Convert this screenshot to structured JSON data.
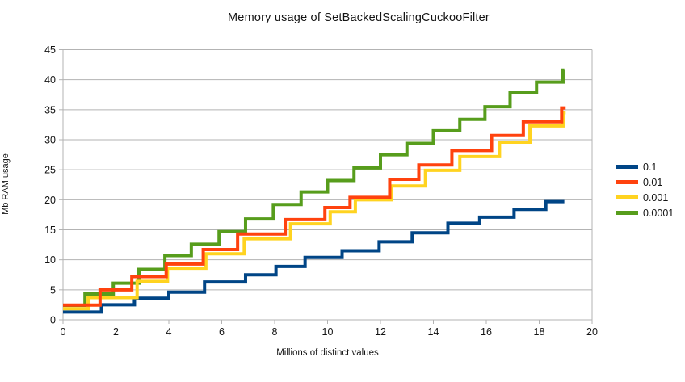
{
  "chart_data": {
    "type": "line",
    "line_style": "step-after",
    "title": "Memory usage of SetBackedScalingCuckooFilter",
    "xlabel": "Millions of distinct values",
    "ylabel": "Mb RAM usage",
    "xlim": [
      0,
      20
    ],
    "ylim": [
      0,
      45
    ],
    "x_ticks": [
      0,
      2,
      4,
      6,
      8,
      10,
      12,
      14,
      16,
      18,
      20
    ],
    "y_ticks": [
      0,
      5,
      10,
      15,
      20,
      25,
      30,
      35,
      40,
      45
    ],
    "grid": "horizontal",
    "grid_color": "#b3b3b3",
    "axis_color": "#b3b3b3",
    "background": "#ffffff",
    "legend_position": "right",
    "legend_entries": [
      "0.1",
      "0.01",
      "0.001",
      "0.0001"
    ],
    "series": [
      {
        "name": "0.1",
        "color": "#004586",
        "start_y": 1.3,
        "end_x": 18.95,
        "steps": [
          [
            1.45,
            2.5
          ],
          [
            2.7,
            3.6
          ],
          [
            4.0,
            4.6
          ],
          [
            5.35,
            6.3
          ],
          [
            6.9,
            7.5
          ],
          [
            8.05,
            8.9
          ],
          [
            9.15,
            10.4
          ],
          [
            10.55,
            11.5
          ],
          [
            11.95,
            13.0
          ],
          [
            13.2,
            14.5
          ],
          [
            14.55,
            16.1
          ],
          [
            15.75,
            17.1
          ],
          [
            17.05,
            18.4
          ],
          [
            18.25,
            19.7
          ]
        ]
      },
      {
        "name": "0.01",
        "color": "#ff420e",
        "start_y": 2.45,
        "end_x": 19.0,
        "steps": [
          [
            1.4,
            5.0
          ],
          [
            2.6,
            7.2
          ],
          [
            3.9,
            9.3
          ],
          [
            5.3,
            11.7
          ],
          [
            6.6,
            14.3
          ],
          [
            8.4,
            16.7
          ],
          [
            9.9,
            18.7
          ],
          [
            10.85,
            20.4
          ],
          [
            12.35,
            23.4
          ],
          [
            13.45,
            25.8
          ],
          [
            14.7,
            28.2
          ],
          [
            16.2,
            30.7
          ],
          [
            17.4,
            33.0
          ],
          [
            18.85,
            35.3
          ]
        ]
      },
      {
        "name": "0.001",
        "color": "#ffd320",
        "start_y": 1.85,
        "end_x": 19.0,
        "steps": [
          [
            0.95,
            3.7
          ],
          [
            2.8,
            6.4
          ],
          [
            3.95,
            8.6
          ],
          [
            5.4,
            11.0
          ],
          [
            6.85,
            13.5
          ],
          [
            8.6,
            16.0
          ],
          [
            10.1,
            18.0
          ],
          [
            11.05,
            20.0
          ],
          [
            12.4,
            22.3
          ],
          [
            13.7,
            24.9
          ],
          [
            15.0,
            27.2
          ],
          [
            16.5,
            29.6
          ],
          [
            17.65,
            32.3
          ],
          [
            18.9,
            34.5
          ]
        ]
      },
      {
        "name": "0.0001",
        "color": "#579d1c",
        "start_y": 2.4,
        "end_x": 18.95,
        "steps": [
          [
            0.83,
            4.3
          ],
          [
            1.9,
            6.1
          ],
          [
            2.87,
            8.4
          ],
          [
            3.85,
            10.7
          ],
          [
            4.85,
            12.6
          ],
          [
            5.9,
            14.7
          ],
          [
            6.9,
            16.8
          ],
          [
            7.95,
            19.2
          ],
          [
            9.0,
            21.3
          ],
          [
            10.0,
            23.2
          ],
          [
            11.0,
            25.3
          ],
          [
            12.0,
            27.5
          ],
          [
            13.0,
            29.4
          ],
          [
            14.0,
            31.5
          ],
          [
            15.0,
            33.4
          ],
          [
            15.95,
            35.5
          ],
          [
            16.9,
            37.8
          ],
          [
            17.9,
            39.6
          ],
          [
            18.9,
            41.6
          ]
        ]
      }
    ],
    "draw_order": [
      "0.1",
      "0.0001",
      "0.001",
      "0.01"
    ]
  }
}
